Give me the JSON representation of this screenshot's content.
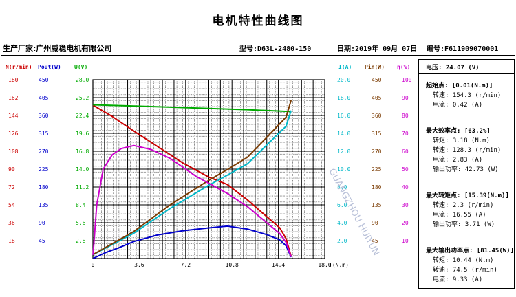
{
  "title": "电机特性曲线图",
  "header": {
    "company": "生产厂家:广州威稳电机有限公司",
    "model": "型号:D63L-2480-150",
    "date": "日期:2019年 09月 07日",
    "serial": "编号:F611909070001"
  },
  "watermark": "GUANGZHOU HUIYUN",
  "panel": {
    "voltage": "电压:   24.07  (V)",
    "start_title": "起始点: [0.01(N.m)]",
    "start_speed": "转速: 154.3  (r/min)",
    "start_current": "电流: 0.42  (A)",
    "eff_title": "最大效率点: [63.2%]",
    "eff_torque": "转矩: 3.18  (N.m)",
    "eff_speed": "转速: 128.3  (r/min)",
    "eff_current": "电流: 2.83  (A)",
    "eff_power": "输出功率: 42.73  (W)",
    "torque_title": "最大转矩点: [15.39(N.m)]",
    "torque_speed": "转速: 2.3  (r/min)",
    "torque_current": "电流: 16.55  (A)",
    "torque_power": "输出功率: 3.71  (W)",
    "power_title": "最大输出功率点: [81.45(W)]",
    "power_torque": "转矩: 10.44  (N.m)",
    "power_speed": "转速: 74.5  (r/min)",
    "power_current": "电流: 9.33  (A)"
  },
  "colors": {
    "speed": "#cc0000",
    "pout": "#0000cc",
    "voltage": "#00aa00",
    "current": "#00b8c8",
    "pin": "#7a3a00",
    "efficiency": "#cc00cc"
  },
  "chart_data": {
    "type": "line",
    "xlabel": "T(N.m)",
    "xlim": [
      0,
      18
    ],
    "x_ticks": [
      "0",
      "3.6",
      "7.2",
      "10.8",
      "14.4",
      "18.0"
    ],
    "axes": [
      {
        "label": "N(r/min)",
        "color": "#cc0000",
        "ticks": [
          "180",
          "162",
          "144",
          "126",
          "108",
          "90",
          "72",
          "54",
          "36",
          "18"
        ],
        "range": [
          0,
          180
        ]
      },
      {
        "label": "Pout(W)",
        "color": "#0000cc",
        "ticks": [
          "450",
          "405",
          "360",
          "315",
          "270",
          "225",
          "180",
          "135",
          "90",
          "45"
        ],
        "range": [
          0,
          450
        ]
      },
      {
        "label": "U(V)",
        "color": "#00aa00",
        "ticks": [
          "28.0",
          "25.2",
          "22.4",
          "19.6",
          "16.8",
          "14.0",
          "11.2",
          "8.4",
          "5.6",
          "2.8"
        ],
        "range": [
          0,
          28
        ]
      },
      {
        "label": "I(A)",
        "color": "#00b8c8",
        "ticks": [
          "20.0",
          "18.0",
          "16.0",
          "14.0",
          "12.0",
          "10.0",
          "8.0",
          "6.0",
          "4.0",
          "2.0"
        ],
        "range": [
          0,
          20
        ]
      },
      {
        "label": "Pin(W)",
        "color": "#7a3a00",
        "ticks": [
          "450",
          "405",
          "360",
          "315",
          "270",
          "225",
          "180",
          "135",
          "90",
          "45"
        ],
        "range": [
          0,
          450
        ]
      },
      {
        "label": "η(%)",
        "color": "#cc00cc",
        "ticks": [
          "100",
          "90",
          "80",
          "70",
          "60",
          "50",
          "40",
          "30",
          "20",
          "10"
        ],
        "range": [
          0,
          100
        ]
      }
    ],
    "series": [
      {
        "key": "speed",
        "axis": 0,
        "x": [
          0.01,
          1.5,
          3.18,
          5,
          7,
          9,
          10.44,
          12,
          13.5,
          14.5,
          15.0,
          15.39
        ],
        "y": [
          154.3,
          143,
          128.3,
          113,
          96,
          82,
          74.5,
          59,
          42,
          31,
          20,
          2.3
        ]
      },
      {
        "key": "pout",
        "axis": 1,
        "x": [
          0.01,
          1,
          2,
          3.18,
          5,
          7,
          9,
          10.44,
          12,
          13.5,
          14.5,
          15.0,
          15.39
        ],
        "y": [
          0.2,
          15,
          27,
          42.7,
          59,
          70,
          77,
          81.45,
          74,
          60,
          47,
          32,
          3.7
        ]
      },
      {
        "key": "voltage",
        "axis": 2,
        "x": [
          0.01,
          3,
          6,
          9,
          12,
          15.39
        ],
        "y": [
          24.07,
          23.9,
          23.7,
          23.5,
          23.3,
          23.0
        ]
      },
      {
        "key": "current",
        "axis": 3,
        "x": [
          0.01,
          3.18,
          6,
          9,
          10.44,
          12,
          14,
          15.0,
          15.39
        ],
        "y": [
          0.42,
          2.83,
          5.6,
          8.2,
          9.33,
          10.6,
          13.4,
          14.8,
          16.55
        ]
      },
      {
        "key": "pin",
        "axis": 4,
        "x": [
          0.01,
          3.18,
          6,
          9,
          10.44,
          12,
          14,
          15.0,
          15.39
        ],
        "y": [
          10,
          68,
          135,
          197,
          224,
          255,
          322,
          356,
          398
        ]
      },
      {
        "key": "efficiency",
        "axis": 5,
        "x": [
          0.01,
          0.3,
          0.8,
          1.5,
          2.2,
          3.18,
          4.5,
          6,
          8,
          10.44,
          12,
          13.5,
          14.5,
          15.0,
          15.39
        ],
        "y": [
          2,
          30,
          50,
          58,
          61.5,
          63.2,
          61,
          56,
          46,
          36.4,
          29,
          20,
          14,
          9,
          1
        ]
      }
    ]
  }
}
